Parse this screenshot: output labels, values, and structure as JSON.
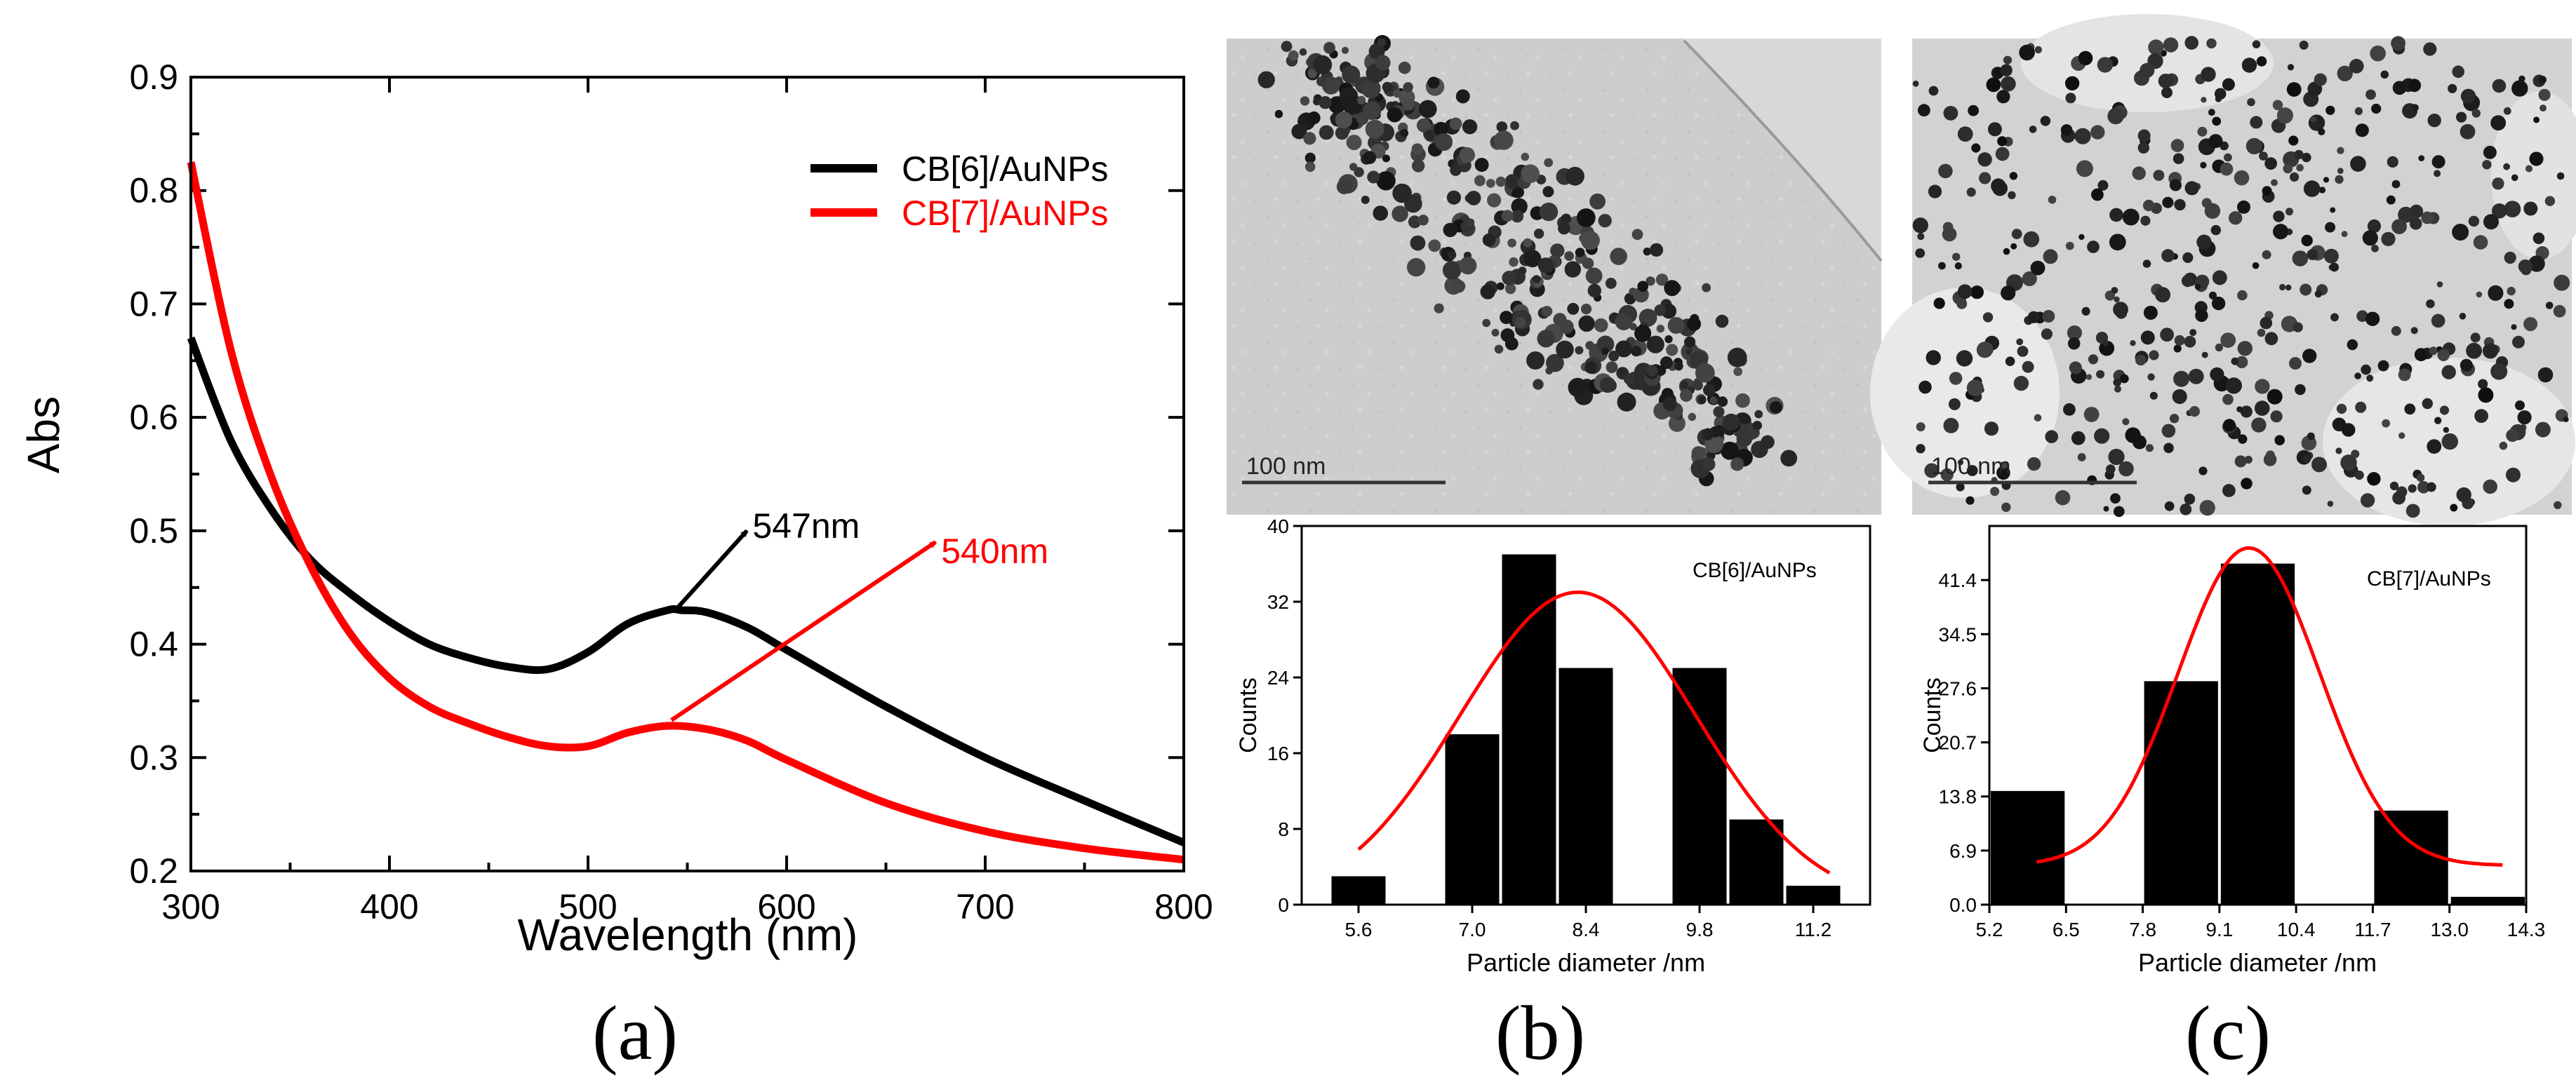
{
  "colors": {
    "black": "#000000",
    "red": "#ff0000",
    "tem_bg": "#cfcfcf"
  },
  "panel_labels": {
    "a": "(a)",
    "b": "(b)",
    "c": "(c)"
  },
  "tem": {
    "b_scale": "100 nm",
    "c_scale": "100 nm"
  },
  "chart_data": [
    {
      "id": "a",
      "type": "line",
      "xlabel": "Wavelength (nm)",
      "ylabel": "Abs",
      "xlim": [
        300,
        800
      ],
      "ylim": [
        0.2,
        0.9
      ],
      "xticks": [
        "300",
        "400",
        "500",
        "600",
        "700",
        "800"
      ],
      "yticks": [
        "0.2",
        "0.3",
        "0.4",
        "0.5",
        "0.6",
        "0.7",
        "0.8",
        "0.9"
      ],
      "legend": [
        "CB[6]/AuNPs",
        "CB[7]/AuNPs"
      ],
      "series": [
        {
          "name": "CB[6]/AuNPs",
          "color": "#000000",
          "x": [
            300,
            320,
            340,
            360,
            380,
            400,
            420,
            440,
            460,
            480,
            500,
            520,
            540,
            547,
            560,
            580,
            600,
            650,
            700,
            750,
            800
          ],
          "y": [
            0.67,
            0.58,
            0.52,
            0.475,
            0.445,
            0.42,
            0.4,
            0.388,
            0.38,
            0.378,
            0.393,
            0.418,
            0.43,
            0.43,
            0.428,
            0.415,
            0.395,
            0.345,
            0.3,
            0.262,
            0.225
          ]
        },
        {
          "name": "CB[7]/AuNPs",
          "color": "#ff0000",
          "x": [
            300,
            320,
            340,
            360,
            380,
            400,
            420,
            440,
            460,
            480,
            500,
            520,
            540,
            560,
            580,
            600,
            650,
            700,
            750,
            800
          ],
          "y": [
            0.825,
            0.66,
            0.55,
            0.47,
            0.41,
            0.37,
            0.345,
            0.33,
            0.318,
            0.31,
            0.31,
            0.322,
            0.328,
            0.325,
            0.315,
            0.298,
            0.26,
            0.235,
            0.22,
            0.21
          ]
        }
      ],
      "annotations": [
        {
          "text": "547nm",
          "color": "#000000",
          "from": [
            545,
            0.432
          ],
          "to": [
            580,
            0.5
          ]
        },
        {
          "text": "540nm",
          "color": "#ff0000",
          "from": [
            542,
            0.333
          ],
          "to": [
            675,
            0.49
          ]
        }
      ]
    },
    {
      "id": "b",
      "type": "bar",
      "title": "CB[6]/AuNPs",
      "xlabel": "Particle diameter /nm",
      "ylabel": "Counts",
      "xlim": [
        4.9,
        11.9
      ],
      "ylim": [
        0,
        40
      ],
      "xticks": [
        "5.6",
        "7.0",
        "8.4",
        "9.8",
        "11.2"
      ],
      "yticks": [
        "0",
        "8",
        "16",
        "24",
        "32",
        "40"
      ],
      "bin_width": 0.7,
      "categories": [
        5.6,
        6.3,
        7.0,
        7.7,
        8.4,
        9.1,
        9.8,
        10.5,
        11.2
      ],
      "values": [
        3,
        0,
        18,
        37,
        25,
        0,
        25,
        9,
        2
      ],
      "fit": {
        "color": "#ff0000",
        "center": 8.3,
        "sigma": 1.45,
        "amplitude": 33,
        "xrange": [
          5.6,
          11.4
        ]
      }
    },
    {
      "id": "c",
      "type": "bar",
      "title": "CB[7]/AuNPs",
      "xlabel": "Particle diameter /nm",
      "ylabel": "Counts",
      "xlim": [
        5.2,
        14.3
      ],
      "ylim": [
        0,
        48.3
      ],
      "xticks": [
        "5.2",
        "6.5",
        "7.8",
        "9.1",
        "10.4",
        "11.7",
        "13.0",
        "14.3"
      ],
      "yticks": [
        "0.0",
        "6.9",
        "13.8",
        "20.7",
        "27.6",
        "34.5",
        "41.4"
      ],
      "bin_width": 1.3,
      "categories": [
        5.85,
        7.15,
        8.45,
        9.75,
        11.05,
        12.35,
        13.65
      ],
      "values": [
        14.5,
        0,
        28.5,
        43.5,
        0,
        12,
        1
      ],
      "fit": {
        "color": "#ff0000",
        "center": 9.6,
        "sigma": 1.2,
        "amplitude": 40.5,
        "baseline": 5,
        "xrange": [
          6.0,
          13.9
        ]
      }
    }
  ]
}
